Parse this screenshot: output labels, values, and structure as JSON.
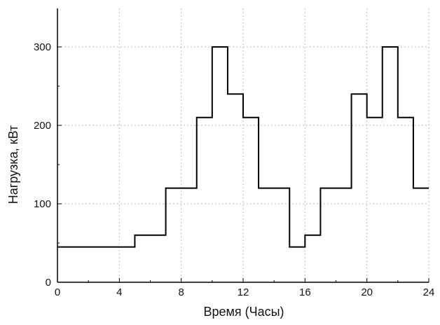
{
  "chart_data": {
    "type": "line",
    "step": true,
    "title": "",
    "xlabel": "Время (Часы)",
    "ylabel": "Нагрузка, кВт",
    "xlim": [
      0,
      24
    ],
    "ylim": [
      0,
      300
    ],
    "x_ticks": [
      0,
      4,
      8,
      12,
      16,
      20,
      24
    ],
    "x_tick_labels": [
      "0",
      "4",
      "8",
      "12",
      "16",
      "20",
      "24"
    ],
    "y_ticks": [
      0,
      100,
      200,
      300
    ],
    "y_tick_labels": [
      "0",
      "100",
      "200",
      "300"
    ],
    "grid": true,
    "grid_style": "dotted",
    "legend": "none",
    "series": [
      {
        "color": "#000000",
        "points": [
          {
            "x": 0,
            "y": 45
          },
          {
            "x": 5,
            "y": 60
          },
          {
            "x": 7,
            "y": 120
          },
          {
            "x": 9,
            "y": 210
          },
          {
            "x": 10,
            "y": 300
          },
          {
            "x": 11,
            "y": 240
          },
          {
            "x": 12,
            "y": 210
          },
          {
            "x": 13,
            "y": 120
          },
          {
            "x": 15,
            "y": 45
          },
          {
            "x": 16,
            "y": 60
          },
          {
            "x": 17,
            "y": 120
          },
          {
            "x": 19,
            "y": 240
          },
          {
            "x": 20,
            "y": 210
          },
          {
            "x": 21,
            "y": 300
          },
          {
            "x": 22,
            "y": 210
          },
          {
            "x": 23,
            "y": 120
          }
        ],
        "x_end": 24
      }
    ]
  }
}
